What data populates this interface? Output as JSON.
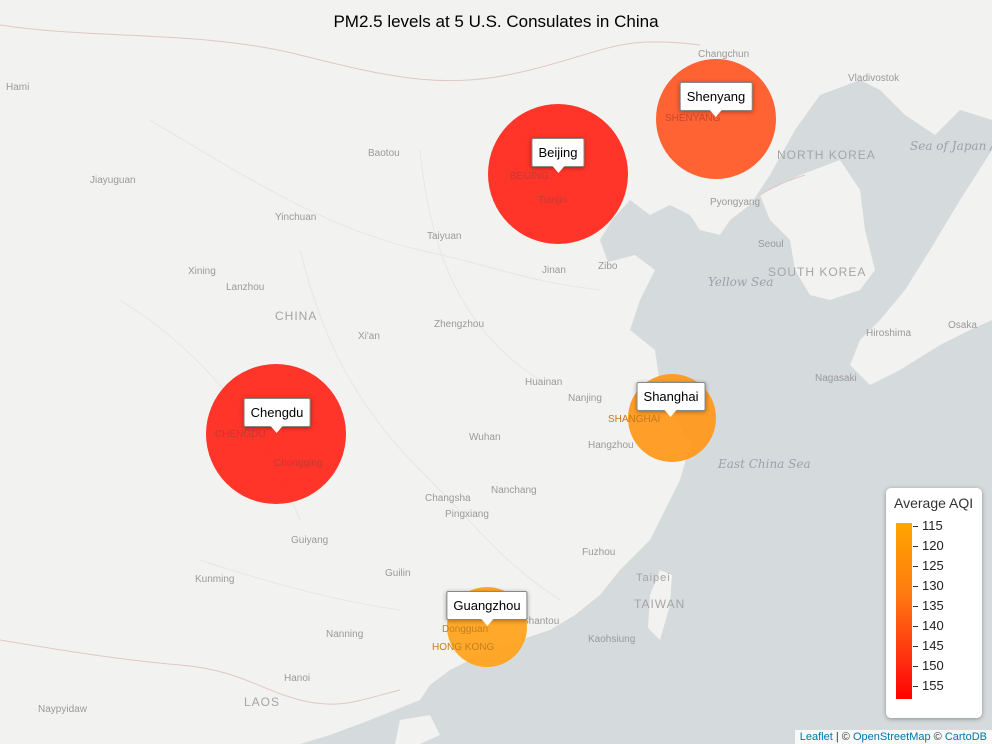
{
  "title": "PM2.5 levels at 5 U.S. Consulates in China",
  "legend": {
    "title": "Average AQI",
    "ticks": [
      "115",
      "120",
      "125",
      "130",
      "135",
      "140",
      "145",
      "150",
      "155"
    ],
    "colors": {
      "low": "#ffa500",
      "high": "#ff0000"
    }
  },
  "consulates": [
    {
      "name": "Beijing",
      "aqi": 155,
      "color": "#ff2a1f"
    },
    {
      "name": "Shenyang",
      "aqi": 142,
      "color": "#ff5a28"
    },
    {
      "name": "Chengdu",
      "aqi": 153,
      "color": "#ff2a1f"
    },
    {
      "name": "Shanghai",
      "aqi": 118,
      "color": "#ff9a1e"
    },
    {
      "name": "Guangzhou",
      "aqi": 116,
      "color": "#ffa31e"
    }
  ],
  "map_labels": {
    "cities": [
      "Hami",
      "Changchun",
      "Vladivostok",
      "Baotou",
      "Jiayuguan",
      "Yinchuan",
      "Taiyuan",
      "Pyongyang",
      "Seoul",
      "Xining",
      "Lanzhou",
      "Jinan",
      "Zibo",
      "Xi'an",
      "Zhengzhou",
      "Hiroshima",
      "Osaka",
      "Nagasaki",
      "Huainan",
      "Nanjing",
      "Hangzhou",
      "Wuhan",
      "Changsha",
      "Nanchang",
      "Pingxiang",
      "Fuzhou",
      "Guiyang",
      "Kunming",
      "Guilin",
      "Taipei",
      "Nanning",
      "Shantou",
      "Kaohsiung",
      "Hanoi",
      "Naypyidaw",
      "Dongguan",
      "Chongqing",
      "Tianjin"
    ],
    "overlay_cities": [
      "BEIJING",
      "SHENYANG",
      "CHENGDU",
      "SHANGHAI",
      "HONG KONG"
    ],
    "countries": [
      "CHINA",
      "NORTH KOREA",
      "SOUTH KOREA",
      "TAIWAN",
      "LAOS"
    ],
    "seas": [
      "Yellow Sea",
      "East China Sea",
      "Sea of Japan / East Sea"
    ]
  },
  "attribution": {
    "leaflet": "Leaflet",
    "sep1": " | © ",
    "osm": "OpenStreetMap",
    "sep2": " © ",
    "carto": "CartoDB"
  }
}
